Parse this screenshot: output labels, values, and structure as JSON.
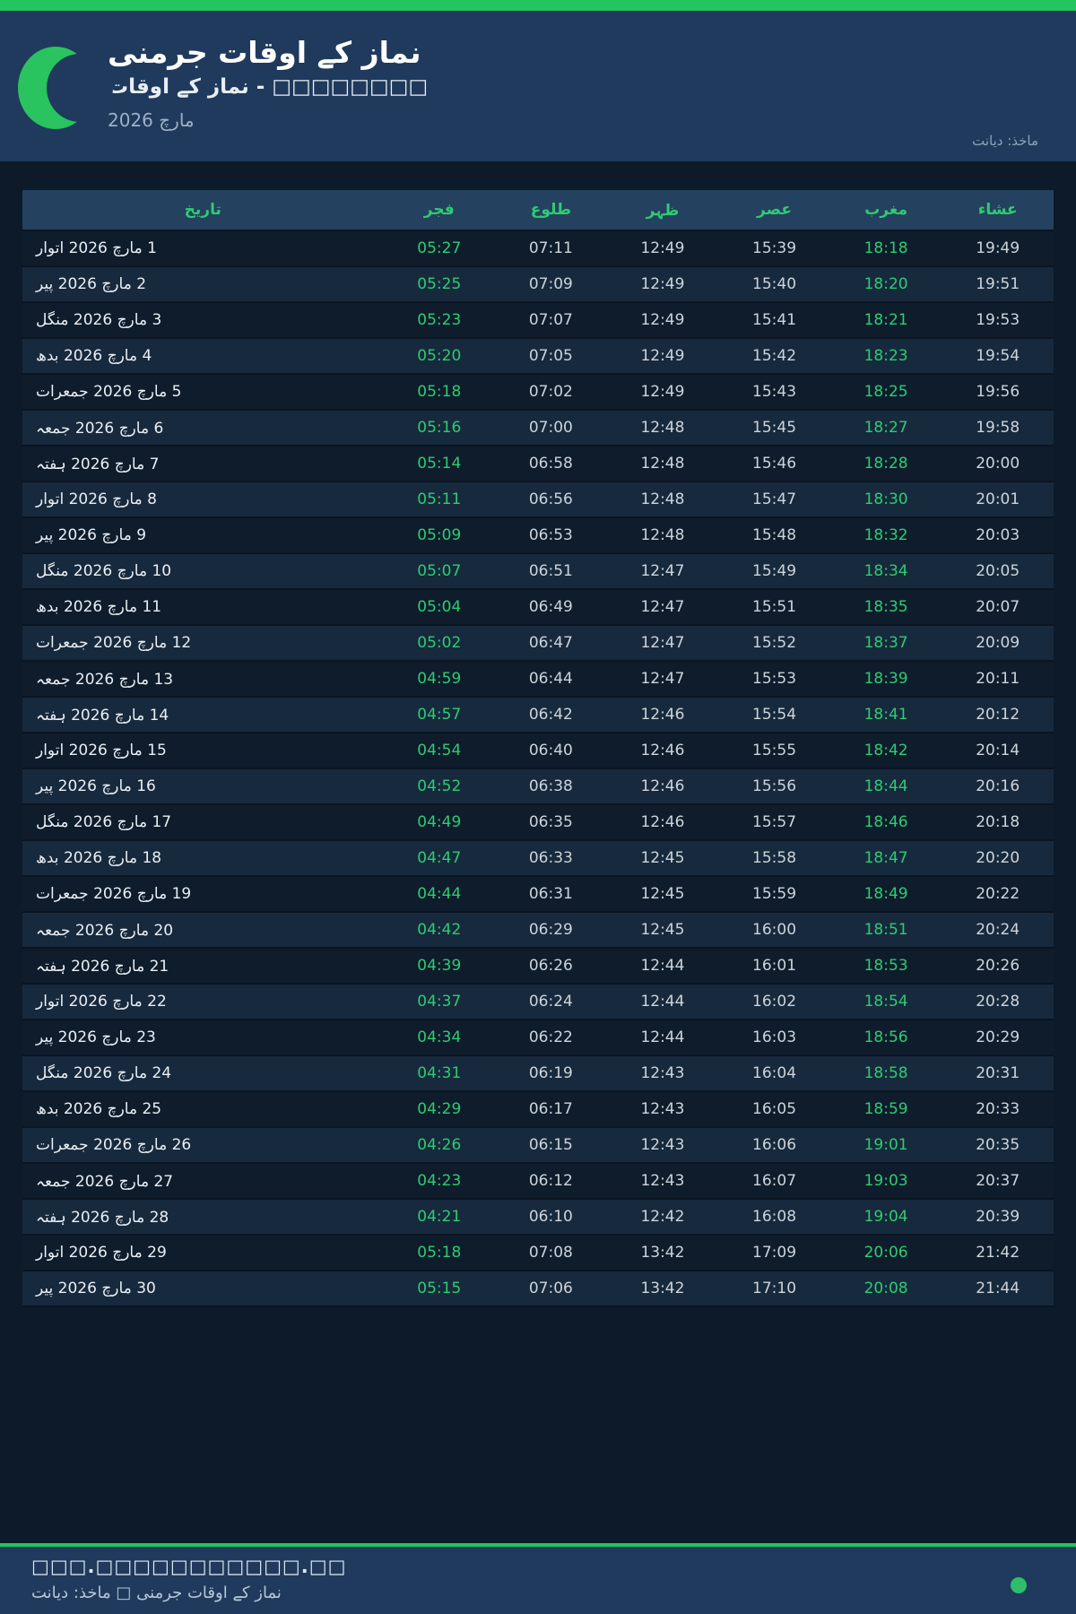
{
  "colors": {
    "accent_green": "#22c55e",
    "text_green": "#2ecc71",
    "header_bg": "#1f3a5c",
    "page_bg": "#0c1a29",
    "row_alt_bg": "#17293d",
    "status_dot": "#2ebd6b"
  },
  "header": {
    "moon_icon": "crescent-moon-icon",
    "title": "نماز کے اوقات جرمنی",
    "subtitle": "نماز کے اوقات - □□□□□□□□",
    "month": "مارچ 2026",
    "source": "ماخذ: دیانت"
  },
  "table": {
    "columns": [
      "تاریخ",
      "فجر",
      "طلوع",
      "ظہر",
      "عصر",
      "مغرب",
      "عشاء"
    ],
    "column_keys": [
      "date",
      "fajr",
      "sunrise",
      "zuhr",
      "asr",
      "maghrib",
      "isha"
    ],
    "green_columns": [
      1,
      5
    ],
    "rows": [
      [
        "1 مارچ 2026 اتوار",
        "05:27",
        "07:11",
        "12:49",
        "15:39",
        "18:18",
        "19:49"
      ],
      [
        "2 مارچ 2026 پیر",
        "05:25",
        "07:09",
        "12:49",
        "15:40",
        "18:20",
        "19:51"
      ],
      [
        "3 مارچ 2026 منگل",
        "05:23",
        "07:07",
        "12:49",
        "15:41",
        "18:21",
        "19:53"
      ],
      [
        "4 مارچ 2026 بدھ",
        "05:20",
        "07:05",
        "12:49",
        "15:42",
        "18:23",
        "19:54"
      ],
      [
        "5 مارچ 2026 جمعرات",
        "05:18",
        "07:02",
        "12:49",
        "15:43",
        "18:25",
        "19:56"
      ],
      [
        "6 مارچ 2026 جمعہ",
        "05:16",
        "07:00",
        "12:48",
        "15:45",
        "18:27",
        "19:58"
      ],
      [
        "7 مارچ 2026 ہفتہ",
        "05:14",
        "06:58",
        "12:48",
        "15:46",
        "18:28",
        "20:00"
      ],
      [
        "8 مارچ 2026 اتوار",
        "05:11",
        "06:56",
        "12:48",
        "15:47",
        "18:30",
        "20:01"
      ],
      [
        "9 مارچ 2026 پیر",
        "05:09",
        "06:53",
        "12:48",
        "15:48",
        "18:32",
        "20:03"
      ],
      [
        "10 مارچ 2026 منگل",
        "05:07",
        "06:51",
        "12:47",
        "15:49",
        "18:34",
        "20:05"
      ],
      [
        "11 مارچ 2026 بدھ",
        "05:04",
        "06:49",
        "12:47",
        "15:51",
        "18:35",
        "20:07"
      ],
      [
        "12 مارچ 2026 جمعرات",
        "05:02",
        "06:47",
        "12:47",
        "15:52",
        "18:37",
        "20:09"
      ],
      [
        "13 مارچ 2026 جمعہ",
        "04:59",
        "06:44",
        "12:47",
        "15:53",
        "18:39",
        "20:11"
      ],
      [
        "14 مارچ 2026 ہفتہ",
        "04:57",
        "06:42",
        "12:46",
        "15:54",
        "18:41",
        "20:12"
      ],
      [
        "15 مارچ 2026 اتوار",
        "04:54",
        "06:40",
        "12:46",
        "15:55",
        "18:42",
        "20:14"
      ],
      [
        "16 مارچ 2026 پیر",
        "04:52",
        "06:38",
        "12:46",
        "15:56",
        "18:44",
        "20:16"
      ],
      [
        "17 مارچ 2026 منگل",
        "04:49",
        "06:35",
        "12:46",
        "15:57",
        "18:46",
        "20:18"
      ],
      [
        "18 مارچ 2026 بدھ",
        "04:47",
        "06:33",
        "12:45",
        "15:58",
        "18:47",
        "20:20"
      ],
      [
        "19 مارچ 2026 جمعرات",
        "04:44",
        "06:31",
        "12:45",
        "15:59",
        "18:49",
        "20:22"
      ],
      [
        "20 مارچ 2026 جمعہ",
        "04:42",
        "06:29",
        "12:45",
        "16:00",
        "18:51",
        "20:24"
      ],
      [
        "21 مارچ 2026 ہفتہ",
        "04:39",
        "06:26",
        "12:44",
        "16:01",
        "18:53",
        "20:26"
      ],
      [
        "22 مارچ 2026 اتوار",
        "04:37",
        "06:24",
        "12:44",
        "16:02",
        "18:54",
        "20:28"
      ],
      [
        "23 مارچ 2026 پیر",
        "04:34",
        "06:22",
        "12:44",
        "16:03",
        "18:56",
        "20:29"
      ],
      [
        "24 مارچ 2026 منگل",
        "04:31",
        "06:19",
        "12:43",
        "16:04",
        "18:58",
        "20:31"
      ],
      [
        "25 مارچ 2026 بدھ",
        "04:29",
        "06:17",
        "12:43",
        "16:05",
        "18:59",
        "20:33"
      ],
      [
        "26 مارچ 2026 جمعرات",
        "04:26",
        "06:15",
        "12:43",
        "16:06",
        "19:01",
        "20:35"
      ],
      [
        "27 مارچ 2026 جمعہ",
        "04:23",
        "06:12",
        "12:43",
        "16:07",
        "19:03",
        "20:37"
      ],
      [
        "28 مارچ 2026 ہفتہ",
        "04:21",
        "06:10",
        "12:42",
        "16:08",
        "19:04",
        "20:39"
      ],
      [
        "29 مارچ 2026 اتوار",
        "05:18",
        "07:08",
        "13:42",
        "17:09",
        "20:06",
        "21:42"
      ],
      [
        "30 مارچ 2026 پیر",
        "05:15",
        "07:06",
        "13:42",
        "17:10",
        "20:08",
        "21:44"
      ]
    ]
  },
  "footer": {
    "website": "□□□.□□□□□□□□□□□.□□",
    "credit": "نماز کے اوقات جرمنی □ ماخذ: دیانت"
  }
}
